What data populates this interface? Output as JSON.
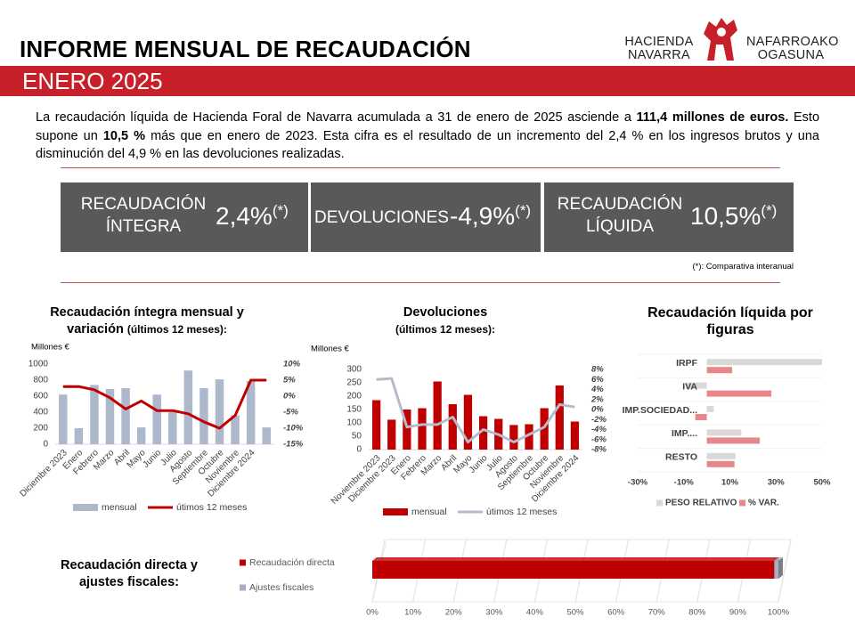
{
  "header": {
    "title": "INFORME MENSUAL DE RECAUDACIÓN",
    "period": "ENERO 2025"
  },
  "logo": {
    "left": [
      "HACIENDA",
      "NAVARRA"
    ],
    "right": [
      "NAFARROAKO",
      "OGASUNA"
    ]
  },
  "summary": {
    "parts": [
      {
        "text": "La recaudación líquida de Hacienda Foral de Navarra acumulada a 31 de enero de 2025 asciende a ",
        "bold": false
      },
      {
        "text": "111,4 millones de euros.",
        "bold": true
      },
      {
        "text": " Esto supone un ",
        "bold": false
      },
      {
        "text": "10,5 %",
        "bold": true
      },
      {
        "text": " más que en enero de 2023. Esta cifra es el resultado de un incremento del 2,4 % en los ingresos brutos y una disminución del 4,9 % en las devoluciones realizadas.",
        "bold": false
      }
    ]
  },
  "kpis": [
    {
      "label": "RECAUDACIÓN ÍNTEGRA",
      "value": "2,4%",
      "note": "(*)"
    },
    {
      "label": "DEVOLUCIONES",
      "value": "-4,9%",
      "note": "(*)"
    },
    {
      "label": "RECAUDACIÓN LÍQUIDA",
      "value": "10,5%",
      "note": "(*)"
    }
  ],
  "footnote": "(*): Comparativa interanual",
  "chart_data": [
    {
      "type": "bar",
      "title": "Recaudación íntegra mensual y variación",
      "subtitle": "(últimos 12 meses):",
      "y_label": "Millones €",
      "categories": [
        "Diciembre 2023",
        "Enero",
        "Febrero",
        "Marzo",
        "Abril",
        "Mayo",
        "Junio",
        "Julio",
        "Agosto",
        "Septiembre",
        "Octubre",
        "Noviembre",
        "Diciembre 2024",
        null
      ],
      "series": [
        {
          "name": "mensual",
          "color": "#aeb8cc",
          "values": [
            620,
            200,
            740,
            690,
            700,
            210,
            620,
            400,
            920,
            700,
            810,
            360,
            790,
            210
          ]
        },
        {
          "name": "útimos 12 meses",
          "color": "#c00000",
          "type": "line",
          "axis": "y2",
          "values": [
            3,
            3,
            2,
            -0.5,
            -4,
            -1.5,
            -4.5,
            -4.5,
            -5.5,
            -8,
            -10,
            -6,
            5,
            5
          ]
        }
      ],
      "ylim": [
        0,
        1000
      ],
      "yticks": [
        0,
        200,
        400,
        600,
        800,
        1000
      ],
      "y2lim": [
        -15,
        10
      ],
      "y2ticks": [
        {
          "value": 10,
          "label": "10%"
        },
        {
          "value": 5,
          "label": "5%"
        },
        {
          "value": 0,
          "label": "0%"
        },
        {
          "value": -5,
          "label": "-5%"
        },
        {
          "value": -10,
          "label": "-10%"
        },
        {
          "value": -15,
          "label": "-15%"
        }
      ]
    },
    {
      "type": "bar",
      "title": "Devoluciones",
      "subtitle": "(últimos 12 meses):",
      "y_label": "Millones €",
      "categories": [
        "Noviembre 2023",
        "Diciembre 2023",
        "Enero",
        "Febrero",
        "Marzo",
        "Abril",
        "Mayo",
        "Junio",
        "Julio",
        "Agosto",
        "Septiembre",
        "Octubre",
        "Noviembre",
        "Diciembre 2024"
      ],
      "series": [
        {
          "name": "mensual",
          "color": "#c00000",
          "values": [
            185,
            112,
            150,
            155,
            255,
            170,
            205,
            125,
            115,
            92,
            95,
            155,
            240,
            105
          ]
        },
        {
          "name": "útimos 12 meses",
          "color": "#b4bccc",
          "type": "line",
          "axis": "y2",
          "values": [
            6,
            6.2,
            -3.5,
            -3,
            -3,
            -1.5,
            -6.5,
            -4,
            -5,
            -6.5,
            -5,
            -3.5,
            1,
            0.5
          ]
        }
      ],
      "ylim": [
        0,
        300
      ],
      "yticks": [
        0,
        50,
        100,
        150,
        200,
        250,
        300
      ],
      "y2lim": [
        -8,
        8
      ],
      "y2ticks": [
        {
          "value": 8,
          "label": "8%"
        },
        {
          "value": 6,
          "label": "6%"
        },
        {
          "value": 4,
          "label": "4%"
        },
        {
          "value": 2,
          "label": "2%"
        },
        {
          "value": 0,
          "label": "0%"
        },
        {
          "value": -2,
          "label": "-2%"
        },
        {
          "value": -4,
          "label": "-4%"
        },
        {
          "value": -6,
          "label": "-6%"
        },
        {
          "value": -8,
          "label": "-8%"
        }
      ]
    },
    {
      "type": "hbar",
      "title": "Recaudación líquida por figuras",
      "categories": [
        "IRPF",
        "IVA",
        "IMP.SOCIEDAD...",
        "IMP....",
        "RESTO"
      ],
      "series": [
        {
          "name": "PESO RELATIVO",
          "color": "#d9d9d9",
          "values": [
            50,
            -9,
            3,
            15,
            12.5
          ]
        },
        {
          "name": "% VAR.",
          "color": "#e8878a",
          "values": [
            11,
            28,
            -5,
            23,
            12
          ]
        }
      ],
      "xlim": [
        -30,
        50
      ],
      "xticks": [
        {
          "value": -30,
          "label": "-30%"
        },
        {
          "value": -10,
          "label": "-10%"
        },
        {
          "value": 10,
          "label": "10%"
        },
        {
          "value": 30,
          "label": "30%"
        },
        {
          "value": 50,
          "label": "50%"
        }
      ]
    },
    {
      "type": "stacked_hbar",
      "title": "Recaudación directa y ajustes fiscales:",
      "series": [
        {
          "name": "Recaudación directa",
          "color": "#c00000",
          "values": [
            99
          ]
        },
        {
          "name": "Ajustes fiscales",
          "color": "#a6b0c4",
          "values": [
            1
          ]
        }
      ],
      "xlim": [
        0,
        100
      ],
      "xticks": [
        {
          "value": 0,
          "label": "0%"
        },
        {
          "value": 10,
          "label": "10%"
        },
        {
          "value": 20,
          "label": "20%"
        },
        {
          "value": 30,
          "label": "30%"
        },
        {
          "value": 40,
          "label": "40%"
        },
        {
          "value": 50,
          "label": "50%"
        },
        {
          "value": 60,
          "label": "60%"
        },
        {
          "value": 70,
          "label": "70%"
        },
        {
          "value": 80,
          "label": "80%"
        },
        {
          "value": 90,
          "label": "90%"
        },
        {
          "value": 100,
          "label": "100%"
        }
      ]
    }
  ]
}
